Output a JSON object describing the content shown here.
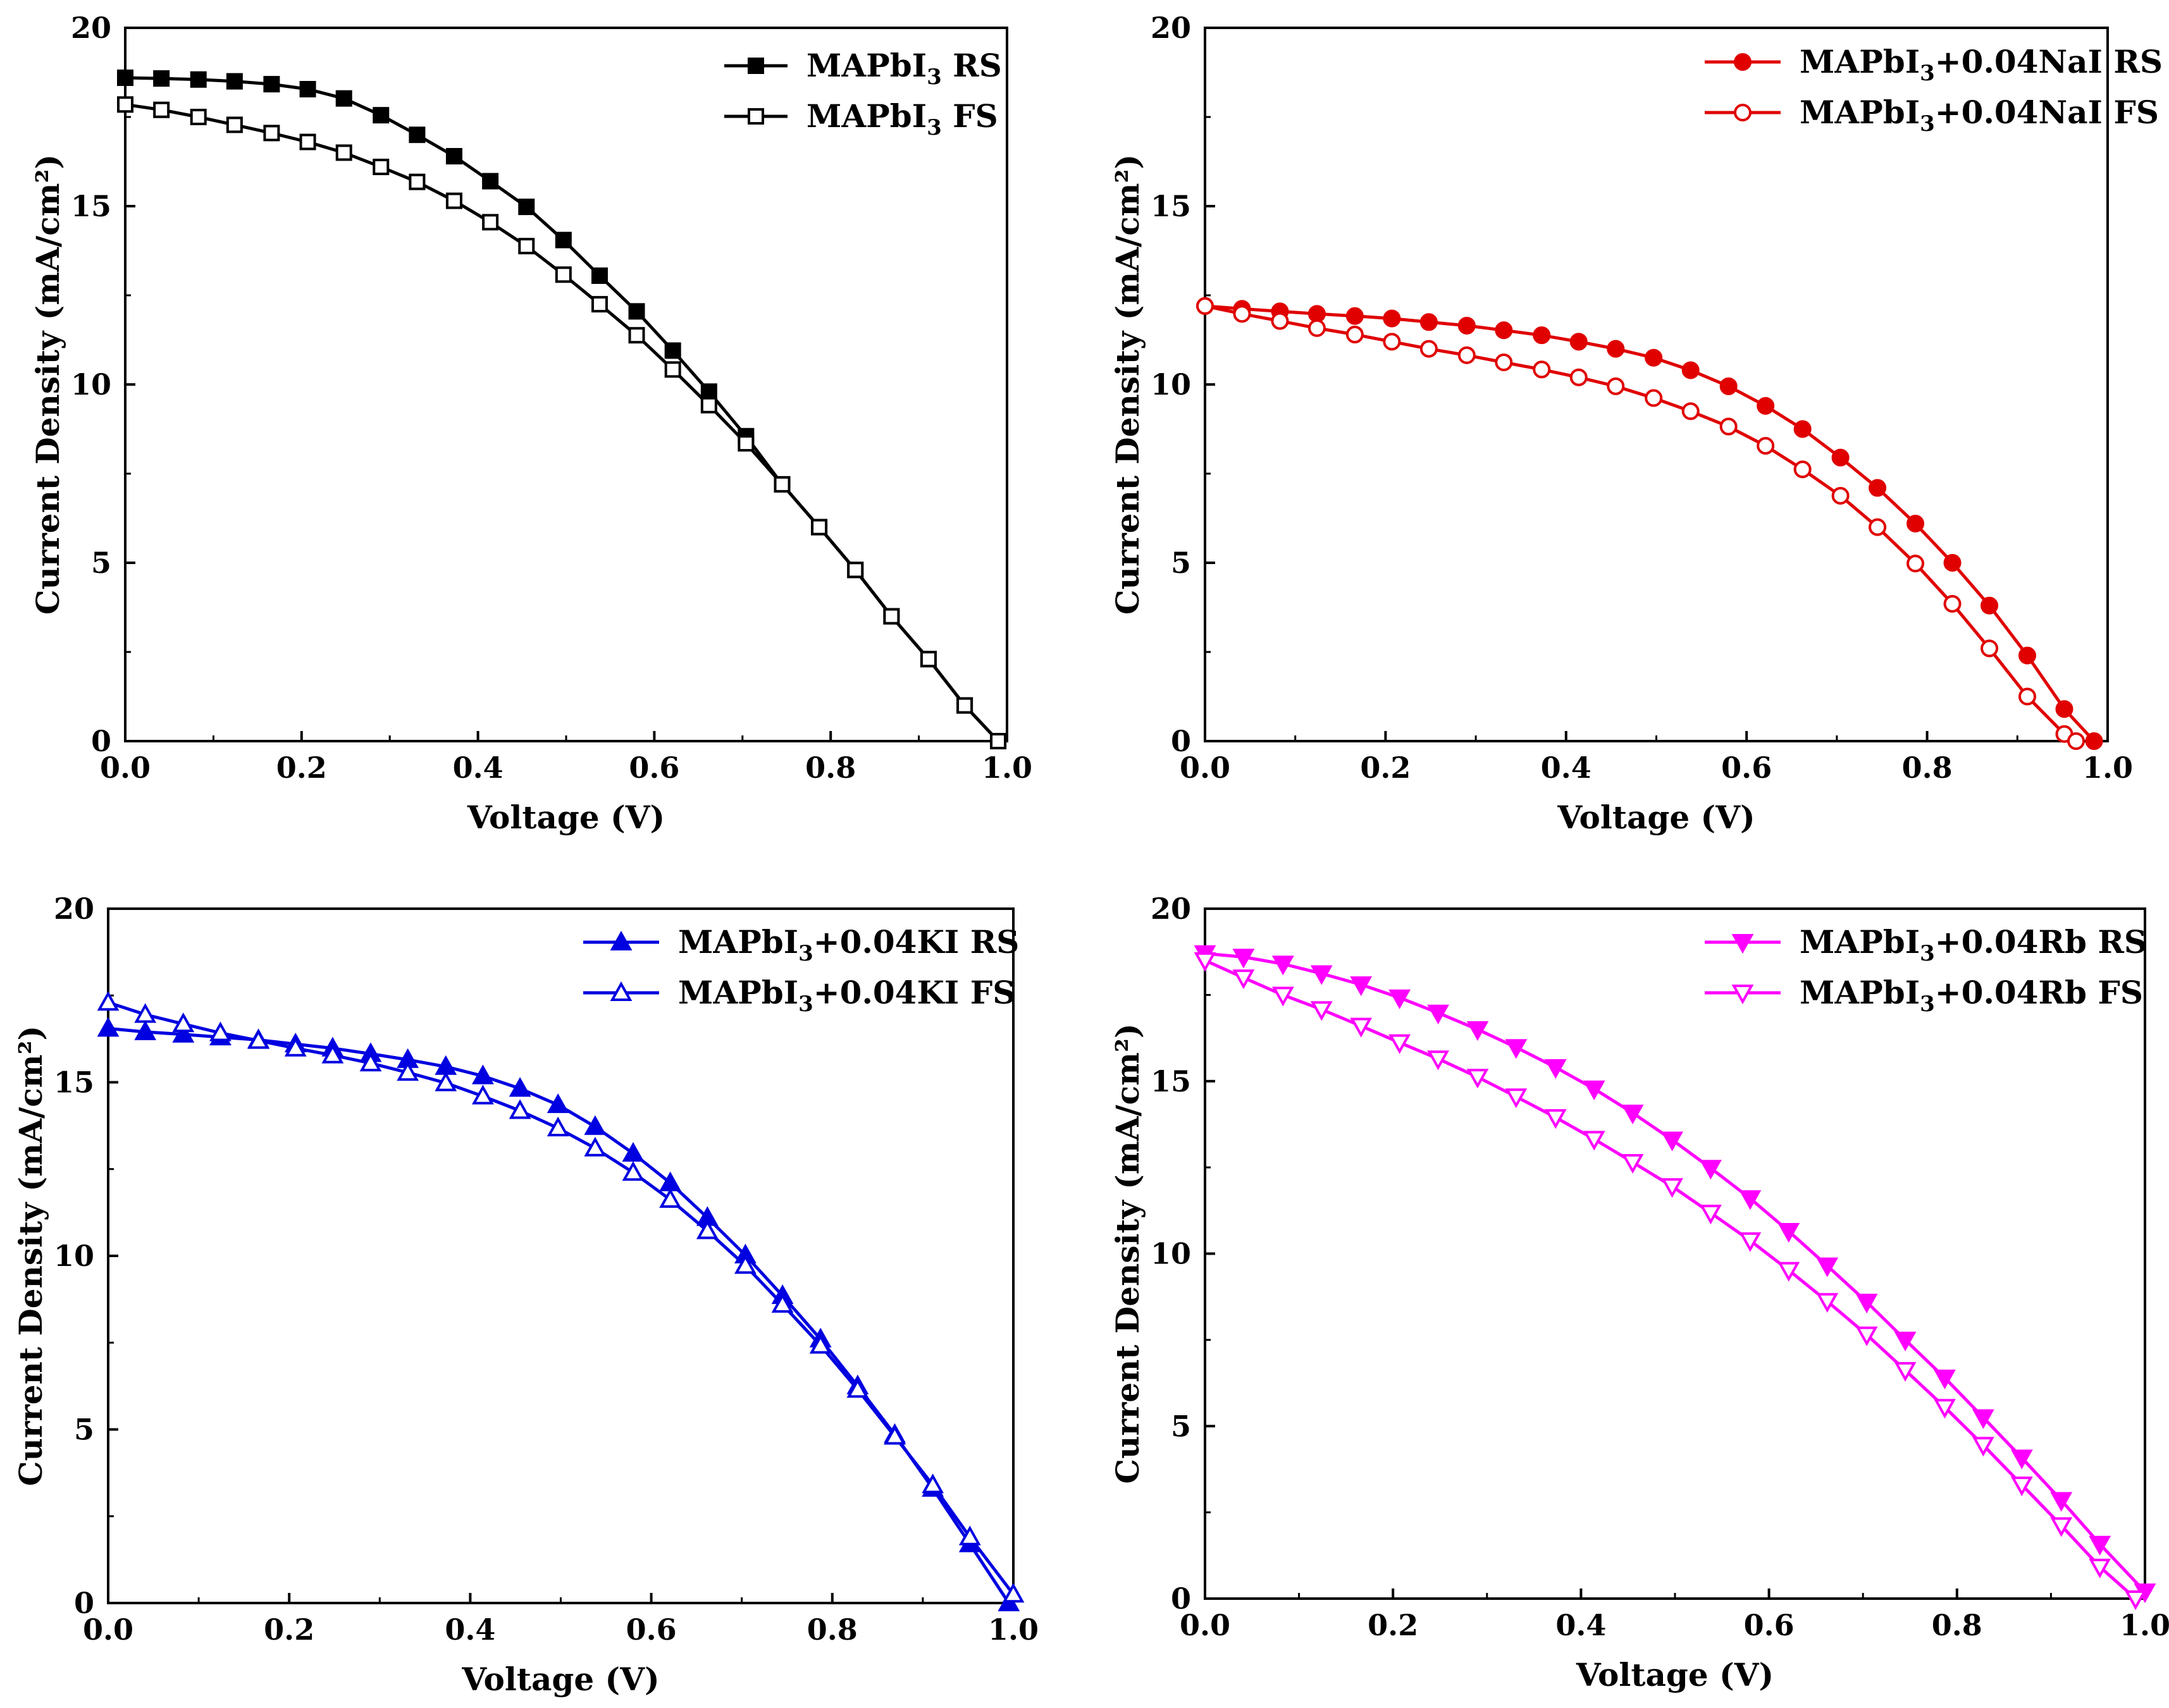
{
  "chart_data": [
    {
      "type": "line",
      "panel": "top-left",
      "color": "#000000",
      "xlabel": "Voltage (V)",
      "ylabel": "Current Density (mA/cm²)",
      "xlim": [
        0.0,
        1.0
      ],
      "ylim": [
        0,
        20
      ],
      "xticks": [
        "0.0",
        "0.2",
        "0.4",
        "0.6",
        "0.8",
        "1.0"
      ],
      "yticks": [
        "0",
        "5",
        "10",
        "15",
        "20"
      ],
      "legend_position": "top-right",
      "series": [
        {
          "legend": {
            "main": "MAPbI",
            "sub": "3",
            "suffix": " RS"
          },
          "marker": "square",
          "filled": true,
          "x": [
            0.0,
            0.041,
            0.083,
            0.124,
            0.166,
            0.207,
            0.248,
            0.29,
            0.331,
            0.373,
            0.414,
            0.455,
            0.497,
            0.538,
            0.58,
            0.621,
            0.662,
            0.704,
            0.745,
            0.787,
            0.828,
            0.869,
            0.911,
            0.952,
            0.99
          ],
          "y": [
            18.6,
            18.58,
            18.55,
            18.5,
            18.42,
            18.28,
            18.02,
            17.55,
            17.0,
            16.4,
            15.7,
            14.98,
            14.05,
            13.05,
            12.05,
            10.95,
            9.8,
            8.55,
            7.2,
            6.0,
            4.8,
            3.5,
            2.3,
            1.0,
            0.0
          ]
        },
        {
          "legend": {
            "main": "MAPbI",
            "sub": "3",
            "suffix": " FS"
          },
          "marker": "square",
          "filled": false,
          "x": [
            0.0,
            0.041,
            0.083,
            0.124,
            0.166,
            0.207,
            0.248,
            0.29,
            0.331,
            0.373,
            0.414,
            0.455,
            0.497,
            0.538,
            0.58,
            0.621,
            0.662,
            0.704,
            0.745,
            0.787,
            0.828,
            0.869,
            0.911,
            0.952,
            0.99
          ],
          "y": [
            17.85,
            17.7,
            17.5,
            17.28,
            17.05,
            16.8,
            16.5,
            16.1,
            15.68,
            15.15,
            14.55,
            13.88,
            13.08,
            12.25,
            11.38,
            10.42,
            9.42,
            8.35,
            7.2,
            6.0,
            4.8,
            3.5,
            2.3,
            1.0,
            0.0
          ]
        }
      ]
    },
    {
      "type": "line",
      "panel": "top-right",
      "color": "#e00000",
      "xlabel": "Voltage (V)",
      "ylabel": "Current Density (mA/cm²)",
      "xlim": [
        0.0,
        1.0
      ],
      "ylim": [
        0,
        20
      ],
      "xticks": [
        "0.0",
        "0.2",
        "0.4",
        "0.6",
        "0.8",
        "1.0"
      ],
      "yticks": [
        "0",
        "5",
        "10",
        "15",
        "20"
      ],
      "legend_position": "top-right",
      "series": [
        {
          "legend": {
            "main": "MAPbI",
            "sub": "3",
            "suffix": "+0.04NaI RS"
          },
          "marker": "circle",
          "filled": true,
          "x": [
            0.0,
            0.041,
            0.083,
            0.124,
            0.166,
            0.207,
            0.248,
            0.29,
            0.331,
            0.373,
            0.414,
            0.455,
            0.497,
            0.538,
            0.58,
            0.621,
            0.662,
            0.704,
            0.745,
            0.787,
            0.828,
            0.869,
            0.911,
            0.952,
            0.985
          ],
          "y": [
            12.2,
            12.12,
            12.05,
            11.98,
            11.92,
            11.85,
            11.75,
            11.65,
            11.52,
            11.38,
            11.2,
            11.0,
            10.75,
            10.4,
            9.95,
            9.4,
            8.75,
            7.95,
            7.1,
            6.1,
            5.0,
            3.8,
            2.4,
            0.9,
            0.0
          ]
        },
        {
          "legend": {
            "main": "MAPbI",
            "sub": "3",
            "suffix": "+0.04NaI FS"
          },
          "marker": "circle",
          "filled": false,
          "x": [
            0.0,
            0.041,
            0.083,
            0.124,
            0.166,
            0.207,
            0.248,
            0.29,
            0.331,
            0.373,
            0.414,
            0.455,
            0.497,
            0.538,
            0.58,
            0.621,
            0.662,
            0.704,
            0.745,
            0.787,
            0.828,
            0.869,
            0.911,
            0.952,
            0.965
          ],
          "y": [
            12.2,
            11.98,
            11.78,
            11.58,
            11.4,
            11.2,
            11.0,
            10.82,
            10.62,
            10.42,
            10.2,
            9.95,
            9.62,
            9.25,
            8.82,
            8.28,
            7.62,
            6.88,
            6.0,
            4.98,
            3.85,
            2.6,
            1.25,
            0.2,
            0.0
          ]
        }
      ]
    },
    {
      "type": "line",
      "panel": "bottom-left",
      "color": "#0000e0",
      "xlabel": "Voltage (V)",
      "ylabel": "Current Density (mA/cm²)",
      "xlim": [
        0.0,
        1.0
      ],
      "ylim": [
        0,
        20
      ],
      "xticks": [
        "0.0",
        "0.2",
        "0.4",
        "0.6",
        "0.8",
        "1.0"
      ],
      "yticks": [
        "0",
        "5",
        "10",
        "15",
        "20"
      ],
      "legend_position": "top-right",
      "series": [
        {
          "legend": {
            "main": "MAPbI",
            "sub": "3",
            "suffix": "+0.04KI RS"
          },
          "marker": "triangle-up",
          "filled": true,
          "x": [
            0.0,
            0.041,
            0.083,
            0.124,
            0.166,
            0.207,
            0.248,
            0.29,
            0.331,
            0.373,
            0.414,
            0.455,
            0.497,
            0.538,
            0.58,
            0.621,
            0.662,
            0.704,
            0.745,
            0.787,
            0.828,
            0.869,
            0.911,
            0.952,
            0.995
          ],
          "y": [
            16.55,
            16.45,
            16.38,
            16.3,
            16.22,
            16.1,
            15.98,
            15.82,
            15.65,
            15.45,
            15.18,
            14.82,
            14.35,
            13.72,
            12.95,
            12.1,
            11.1,
            10.02,
            8.85,
            7.6,
            6.25,
            4.85,
            3.3,
            1.7,
            0.0
          ]
        },
        {
          "legend": {
            "main": "MAPbI",
            "sub": "3",
            "suffix": "+0.04KI FS"
          },
          "marker": "triangle-up",
          "filled": false,
          "x": [
            0.0,
            0.041,
            0.083,
            0.124,
            0.166,
            0.207,
            0.248,
            0.29,
            0.331,
            0.373,
            0.414,
            0.455,
            0.497,
            0.538,
            0.58,
            0.621,
            0.662,
            0.704,
            0.745,
            0.787,
            0.828,
            0.869,
            0.911,
            0.952,
            1.0
          ],
          "y": [
            17.3,
            16.95,
            16.68,
            16.42,
            16.2,
            15.98,
            15.78,
            15.55,
            15.28,
            14.98,
            14.6,
            14.18,
            13.68,
            13.1,
            12.4,
            11.62,
            10.72,
            9.72,
            8.6,
            7.42,
            6.15,
            4.8,
            3.4,
            1.9,
            0.25
          ]
        }
      ]
    },
    {
      "type": "line",
      "panel": "bottom-right",
      "color": "#ff00ff",
      "xlabel": "Voltage (V)",
      "ylabel": "Current Density (mA/cm²)",
      "xlim": [
        0.0,
        1.0
      ],
      "ylim": [
        0,
        20
      ],
      "xticks": [
        "0.0",
        "0.2",
        "0.4",
        "0.6",
        "0.8",
        "1.0"
      ],
      "yticks": [
        "0",
        "5",
        "10",
        "15",
        "20"
      ],
      "legend_position": "top-right",
      "series": [
        {
          "legend": {
            "main": "MAPbI",
            "sub": "3",
            "suffix": "+0.04Rb RS"
          },
          "marker": "triangle-down",
          "filled": true,
          "x": [
            0.0,
            0.041,
            0.083,
            0.124,
            0.166,
            0.207,
            0.248,
            0.29,
            0.331,
            0.373,
            0.414,
            0.455,
            0.497,
            0.538,
            0.58,
            0.621,
            0.662,
            0.704,
            0.745,
            0.787,
            0.828,
            0.869,
            0.911,
            0.952,
            1.0
          ],
          "y": [
            18.7,
            18.6,
            18.4,
            18.12,
            17.8,
            17.42,
            16.98,
            16.5,
            15.98,
            15.4,
            14.78,
            14.08,
            13.3,
            12.48,
            11.6,
            10.65,
            9.65,
            8.6,
            7.5,
            6.4,
            5.25,
            4.08,
            2.85,
            1.58,
            0.2
          ]
        },
        {
          "legend": {
            "main": "MAPbI",
            "sub": "3",
            "suffix": "+0.04Rb FS"
          },
          "marker": "triangle-down",
          "filled": false,
          "x": [
            0.0,
            0.041,
            0.083,
            0.124,
            0.166,
            0.207,
            0.248,
            0.29,
            0.331,
            0.373,
            0.414,
            0.455,
            0.497,
            0.538,
            0.58,
            0.621,
            0.662,
            0.704,
            0.745,
            0.787,
            0.828,
            0.869,
            0.911,
            0.952,
            0.99
          ],
          "y": [
            18.5,
            18.0,
            17.5,
            17.08,
            16.6,
            16.12,
            15.65,
            15.12,
            14.55,
            13.95,
            13.32,
            12.65,
            11.95,
            11.18,
            10.38,
            9.52,
            8.62,
            7.65,
            6.62,
            5.55,
            4.45,
            3.3,
            2.12,
            0.92,
            0.0
          ]
        }
      ]
    }
  ]
}
